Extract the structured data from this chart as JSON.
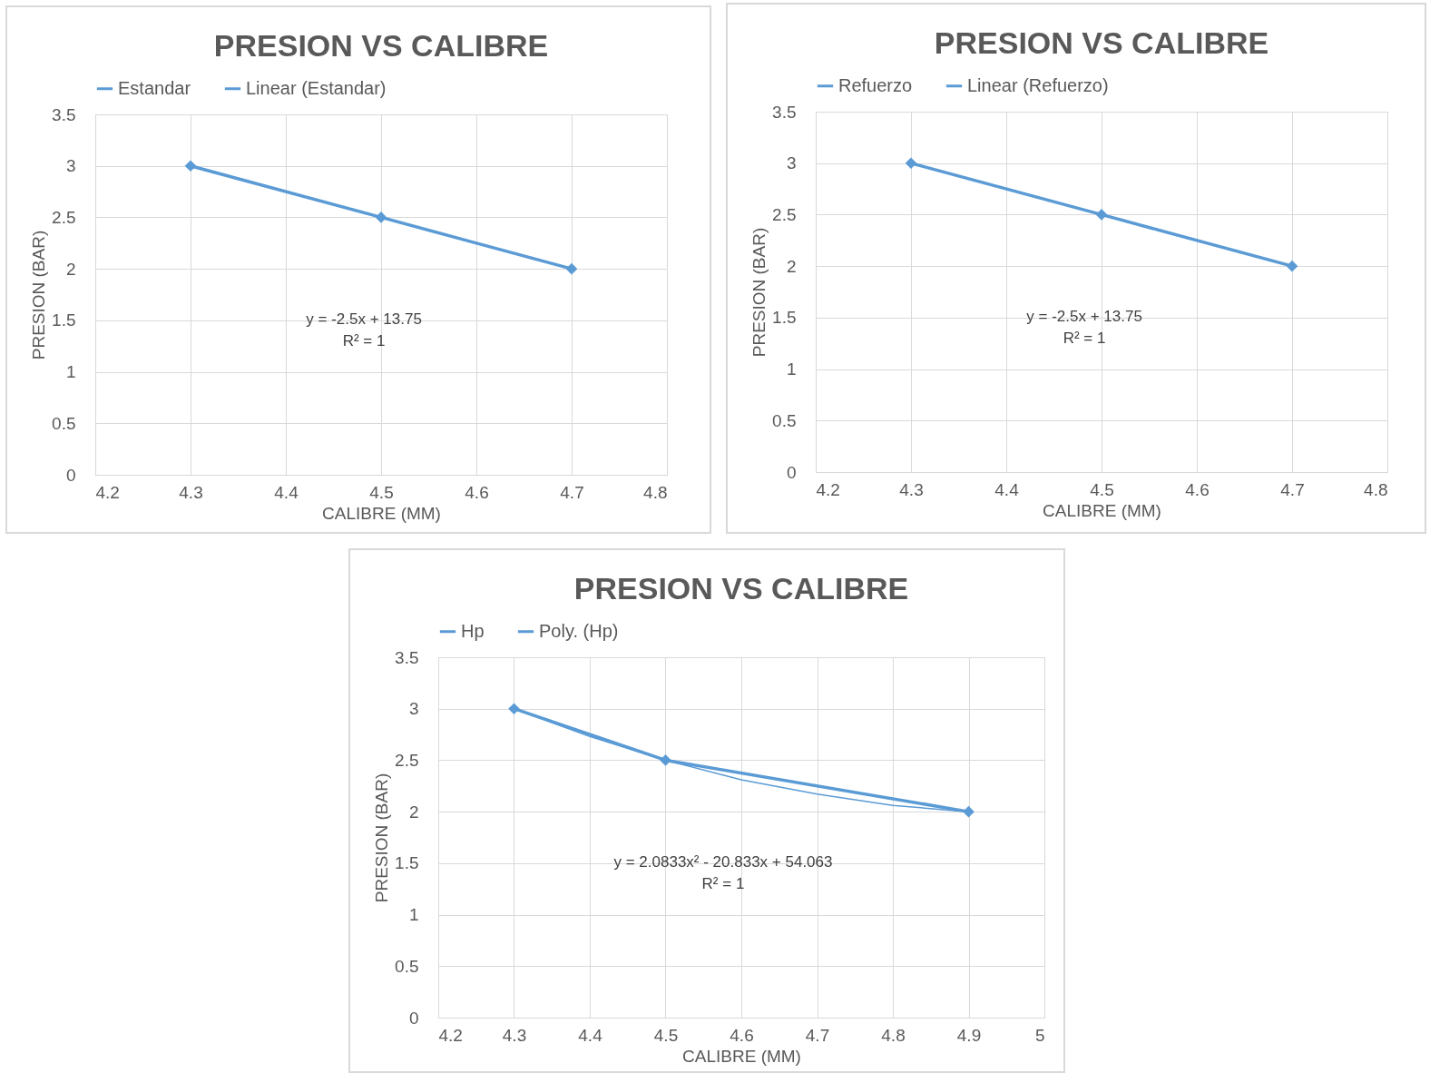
{
  "chart_data": [
    {
      "type": "line",
      "title": "PRESION VS CALIBRE",
      "xlabel": "CALIBRE (MM)",
      "ylabel": "PRESION (BAR)",
      "x": [
        4.3,
        4.5,
        4.7
      ],
      "series": [
        {
          "name": "Estandar",
          "color": "#5b9bd5",
          "values": [
            3,
            2.5,
            2
          ],
          "marker": "diamond"
        },
        {
          "name": "Linear (Estandar)",
          "color": "#5b9bd5",
          "values": [
            null,
            null,
            null
          ],
          "marker": "none"
        }
      ],
      "xlim": [
        4.2,
        4.8
      ],
      "xticks": [
        4.2,
        4.3,
        4.4,
        4.5,
        4.6,
        4.7,
        4.8
      ],
      "ylim": [
        0,
        3.5
      ],
      "yticks": [
        0,
        0.5,
        1,
        1.5,
        2,
        2.5,
        3,
        3.5
      ],
      "grid": true,
      "legend": "top",
      "line_style": "solid",
      "annotations": [
        "y = -2.5x + 13.75",
        "R² = 1"
      ]
    },
    {
      "type": "line",
      "title": "PRESION VS CALIBRE",
      "xlabel": "CALIBRE (MM)",
      "ylabel": "PRESION (BAR)",
      "x": [
        4.3,
        4.5,
        4.7
      ],
      "series": [
        {
          "name": "Refuerzo",
          "color": "#5b9bd5",
          "values": [
            3,
            2.5,
            2
          ],
          "marker": "diamond"
        },
        {
          "name": "Linear (Refuerzo)",
          "color": "#5b9bd5",
          "values": [
            null,
            null,
            null
          ],
          "marker": "none"
        }
      ],
      "xlim": [
        4.2,
        4.8
      ],
      "xticks": [
        4.2,
        4.3,
        4.4,
        4.5,
        4.6,
        4.7,
        4.8
      ],
      "ylim": [
        0,
        3.5
      ],
      "yticks": [
        0,
        0.5,
        1,
        1.5,
        2,
        2.5,
        3,
        3.5
      ],
      "grid": true,
      "legend": "top",
      "line_style": "solid",
      "annotations": [
        "y = -2.5x + 13.75",
        "R² = 1"
      ]
    },
    {
      "type": "line",
      "title": "PRESION VS CALIBRE",
      "xlabel": "CALIBRE (MM)",
      "ylabel": "PRESION (BAR)",
      "x": [
        4.3,
        4.5,
        4.9
      ],
      "series": [
        {
          "name": "Hp",
          "color": "#5b9bd5",
          "values": [
            3,
            2.5,
            2
          ],
          "marker": "diamond"
        },
        {
          "name": "Poly. (Hp)",
          "color": "#5b9bd5",
          "x": [
            4.3,
            4.4,
            4.5,
            4.6,
            4.7,
            4.8,
            4.9
          ],
          "values": [
            3,
            2.73,
            2.5,
            2.31,
            2.17,
            2.06,
            2.0
          ],
          "marker": "none"
        }
      ],
      "xlim": [
        4.2,
        5
      ],
      "xticks": [
        4.2,
        4.3,
        4.4,
        4.5,
        4.6,
        4.7,
        4.8,
        4.9,
        5
      ],
      "ylim": [
        0,
        3.5
      ],
      "yticks": [
        0,
        0.5,
        1,
        1.5,
        2,
        2.5,
        3,
        3.5
      ],
      "grid": true,
      "legend": "top",
      "line_style": "solid",
      "annotations": [
        "y = 2.0833x² - 20.833x + 54.063",
        "R² = 1"
      ]
    }
  ]
}
